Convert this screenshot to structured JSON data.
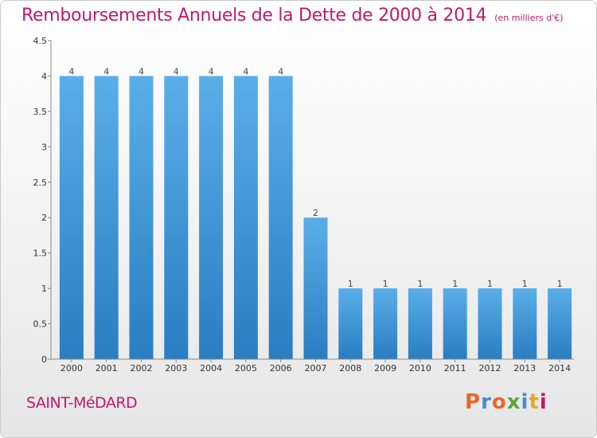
{
  "header": {
    "title": "Remboursements Annuels de la Dette de 2000 à 2014",
    "unit": "(en milliers d'€)"
  },
  "footer": {
    "town": "SAINT-MéDARD",
    "logo_text": "Proxiti",
    "logo_colors": [
      "#e8662c",
      "#3f8fd2",
      "#e8662c",
      "#5aa832",
      "#3f8fd2",
      "#e8a72c",
      "#c2186c"
    ]
  },
  "colors": {
    "accent": "#c2186c",
    "bar_light": "#5aaee8",
    "bar_dark": "#2a7dc1"
  },
  "chart_data": {
    "type": "bar",
    "title": "Remboursements Annuels de la Dette de 2000 à 2014",
    "subtitle": "(en milliers d'€)",
    "categories": [
      "2000",
      "2001",
      "2002",
      "2003",
      "2004",
      "2005",
      "2006",
      "2007",
      "2008",
      "2009",
      "2010",
      "2011",
      "2012",
      "2013",
      "2014"
    ],
    "values": [
      4,
      4,
      4,
      4,
      4,
      4,
      4,
      2,
      1,
      1,
      1,
      1,
      1,
      1,
      1
    ],
    "data_labels": [
      "4",
      "4",
      "4",
      "4",
      "4",
      "4",
      "4",
      "2",
      "1",
      "1",
      "1",
      "1",
      "1",
      "1",
      "1"
    ],
    "y_ticks": [
      "0",
      "0.5",
      "1",
      "1.5",
      "2",
      "2.5",
      "3",
      "3.5",
      "4",
      "4.5"
    ],
    "xlabel": "",
    "ylabel": "",
    "ylim": [
      0,
      4.5
    ],
    "grid": false,
    "legend": "none"
  }
}
